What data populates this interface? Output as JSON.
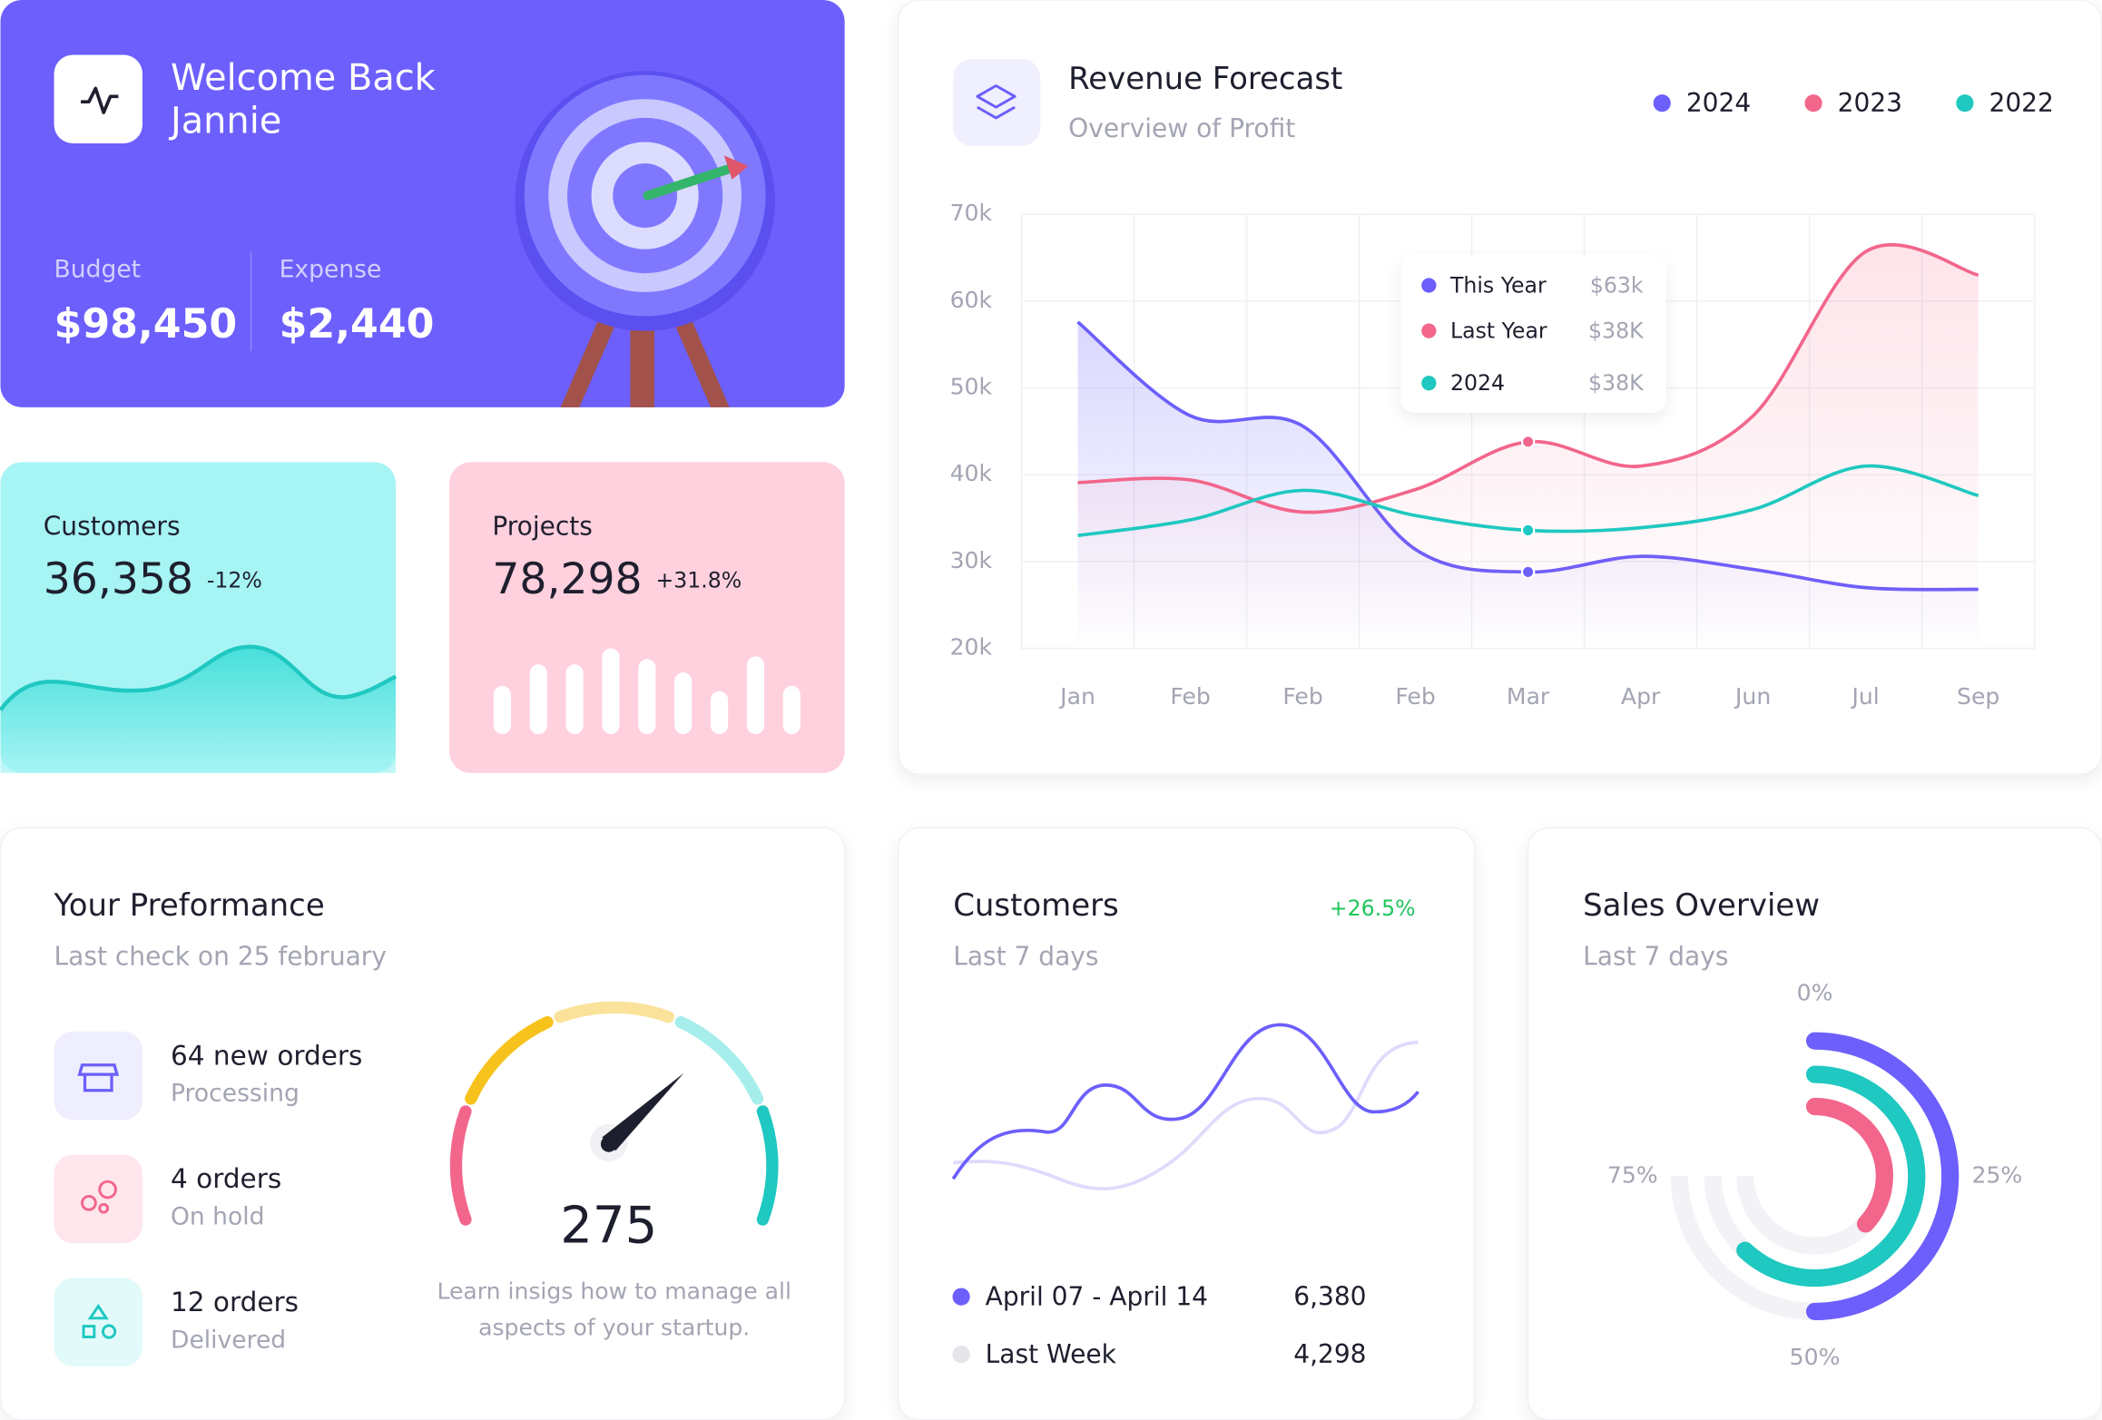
{
  "welcome": {
    "title": "Welcome Back",
    "name": "Jannie",
    "budget_label": "Budget",
    "budget": "$98,450",
    "expense_label": "Expense",
    "expense": "$2,440"
  },
  "customers_card": {
    "label": "Customers",
    "value": "36,358",
    "change": "-12%"
  },
  "projects_card": {
    "label": "Projects",
    "value": "78,298",
    "change": "+31.8%",
    "bars": [
      36,
      52,
      52,
      64,
      56,
      46,
      32,
      58,
      36
    ]
  },
  "revenue_forecast": {
    "type": "line",
    "title": "Revenue Forecast",
    "subtitle": "Overview of Profit",
    "categories": [
      "Jan",
      "Feb",
      "Feb",
      "Feb",
      "Mar",
      "Apr",
      "Jun",
      "Jul",
      "Sep"
    ],
    "series": [
      {
        "name": "2024",
        "color": "#6c5ffc",
        "values": [
          57600,
          46800,
          45600,
          31400,
          28800,
          30600,
          29100,
          27000,
          26800
        ]
      },
      {
        "name": "2023",
        "color": "#f2668b",
        "values": [
          39100,
          39400,
          35700,
          38300,
          43800,
          41000,
          46800,
          65700,
          63000
        ]
      },
      {
        "name": "2022",
        "color": "#1fc8c0",
        "values": [
          33000,
          34800,
          38200,
          35300,
          33600,
          33900,
          36000,
          41000,
          37600
        ]
      }
    ],
    "ylim": [
      20000,
      70000
    ],
    "yticks": [
      {
        "value": 20000,
        "label": "20k"
      },
      {
        "value": 30000,
        "label": "30k"
      },
      {
        "value": 40000,
        "label": "40k"
      },
      {
        "value": 50000,
        "label": "50k"
      },
      {
        "value": 60000,
        "label": "60k"
      },
      {
        "value": 70000,
        "label": "70k"
      }
    ],
    "grid": true,
    "legend": "top-right",
    "tooltip": [
      {
        "label": "This Year",
        "value": "$63k",
        "color": "#6c5ffc"
      },
      {
        "label": "Last Year",
        "value": "$38K",
        "color": "#f2668b"
      },
      {
        "label": "2024",
        "value": "$38K",
        "color": "#1fc8c0"
      }
    ]
  },
  "performance": {
    "title": "Your Preformance",
    "subtitle": "Last check on 25 february",
    "items": [
      {
        "title": "64 new orders",
        "status": "Processing"
      },
      {
        "title": "4 orders",
        "status": "On hold"
      },
      {
        "title": "12 orders",
        "status": "Delivered"
      }
    ],
    "gauge_value": "275",
    "note_line1": "Learn insigs how to manage all",
    "note_line2": "aspects of your startup."
  },
  "customers_chart": {
    "title": "Customers",
    "change": "+26.5%",
    "subtitle": "Last 7 days",
    "legend": [
      {
        "name": "April 07 - April 14",
        "value": "6,380",
        "color": "#6c5ffc"
      },
      {
        "name": "Last Week",
        "value": "4,298",
        "color": "#e4e4ea"
      }
    ]
  },
  "sales_overview": {
    "type": "radial",
    "title": "Sales Overview",
    "subtitle": "Last 7 days",
    "ticks": [
      {
        "value": 0,
        "label": "0%"
      },
      {
        "value": 25,
        "label": "25%"
      },
      {
        "value": 50,
        "label": "50%"
      },
      {
        "value": 75,
        "label": "75%"
      }
    ],
    "series": [
      {
        "color": "#6c5ffc",
        "values": [
          50
        ]
      },
      {
        "color": "#1fc8c0",
        "values": [
          62
        ]
      },
      {
        "color": "#f2668b",
        "values": [
          37
        ]
      }
    ]
  }
}
